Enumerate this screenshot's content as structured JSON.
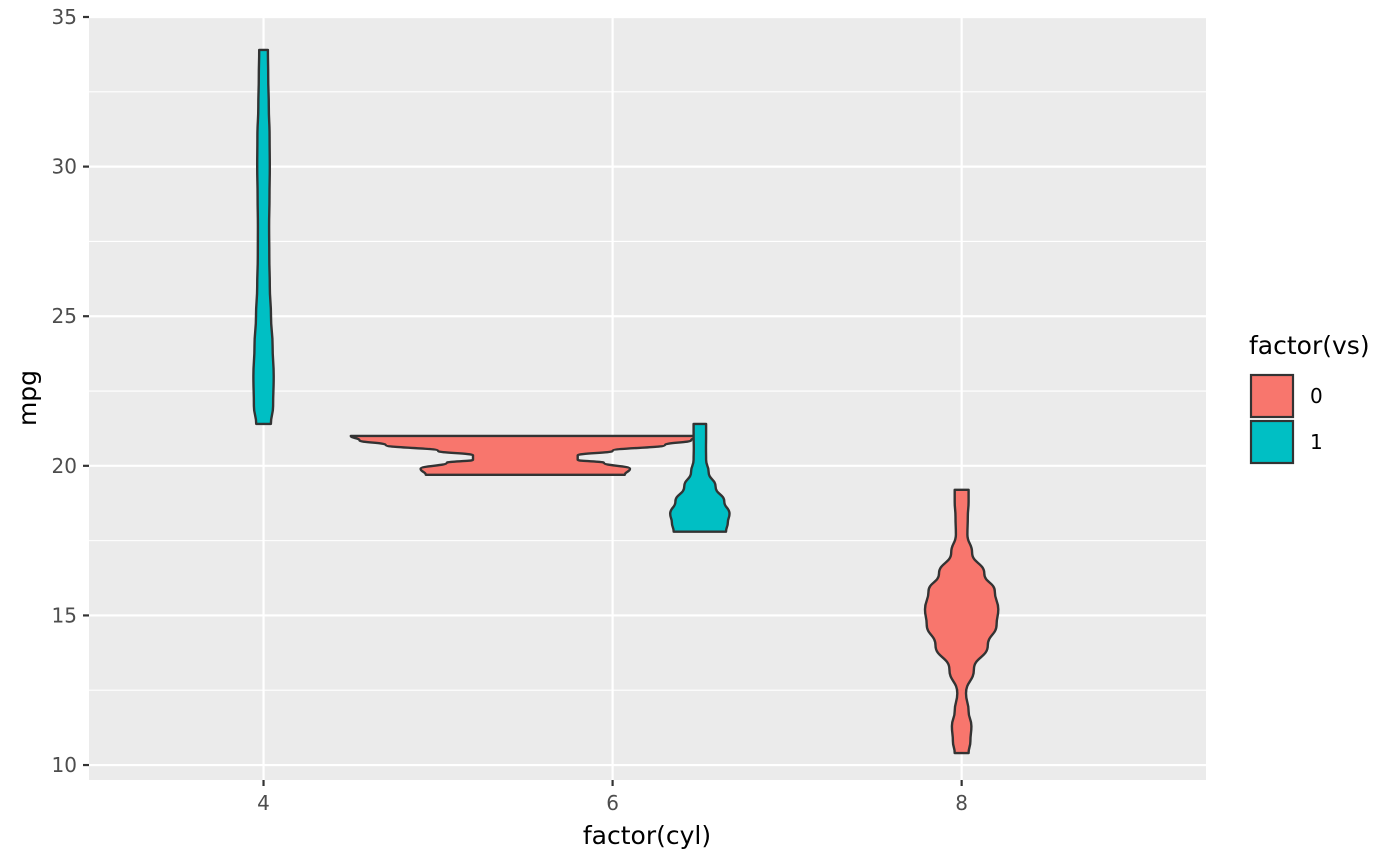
{
  "chart_data": {
    "type": "violin",
    "xlabel": "factor(cyl)",
    "ylabel": "mpg",
    "x_categories": [
      "4",
      "6",
      "8"
    ],
    "x_range": [
      3,
      9.4
    ],
    "ylim": [
      9.5,
      35
    ],
    "y_ticks": [
      10,
      15,
      20,
      25,
      30,
      35
    ],
    "grid": true,
    "legend": {
      "title": "factor(vs)",
      "position": "right",
      "entries": [
        {
          "label": "0",
          "color": "#F8766D"
        },
        {
          "label": "1",
          "color": "#00BFC4"
        }
      ]
    },
    "violins": [
      {
        "cyl": "4",
        "vs": "1",
        "x_center": 4,
        "ymin": 21.4,
        "ymax": 33.9,
        "profile": [
          [
            21.4,
            0.042
          ],
          [
            22,
            0.055
          ],
          [
            23,
            0.058
          ],
          [
            24,
            0.052
          ],
          [
            25,
            0.043
          ],
          [
            26,
            0.036
          ],
          [
            27,
            0.033
          ],
          [
            28,
            0.032
          ],
          [
            29,
            0.034
          ],
          [
            30,
            0.036
          ],
          [
            31,
            0.035
          ],
          [
            32,
            0.03
          ],
          [
            33,
            0.027
          ],
          [
            33.9,
            0.025
          ]
        ]
      },
      {
        "cyl": "6",
        "vs": "0",
        "x_center": 5.5,
        "ymin": 19.7,
        "ymax": 21.0,
        "profile": [
          [
            19.7,
            0.57
          ],
          [
            19.9,
            0.6
          ],
          [
            20.1,
            0.45
          ],
          [
            20.2,
            0.3
          ],
          [
            20.35,
            0.3
          ],
          [
            20.5,
            0.5
          ],
          [
            20.7,
            0.8
          ],
          [
            20.85,
            0.95
          ],
          [
            21.0,
            1.0
          ]
        ]
      },
      {
        "cyl": "6",
        "vs": "1",
        "x_center": 6.5,
        "ymin": 17.8,
        "ymax": 21.4,
        "profile": [
          [
            17.8,
            0.15
          ],
          [
            18.1,
            0.16
          ],
          [
            18.4,
            0.17
          ],
          [
            18.8,
            0.14
          ],
          [
            19.3,
            0.09
          ],
          [
            19.8,
            0.05
          ],
          [
            20.2,
            0.036
          ],
          [
            20.6,
            0.035
          ],
          [
            21.0,
            0.036
          ],
          [
            21.4,
            0.036
          ]
        ]
      },
      {
        "cyl": "8",
        "vs": "0",
        "x_center": 8,
        "ymin": 10.4,
        "ymax": 19.2,
        "profile": [
          [
            10.4,
            0.04
          ],
          [
            10.8,
            0.05
          ],
          [
            11.3,
            0.056
          ],
          [
            11.8,
            0.04
          ],
          [
            12.4,
            0.025
          ],
          [
            13.2,
            0.07
          ],
          [
            14.0,
            0.15
          ],
          [
            14.7,
            0.2
          ],
          [
            15.2,
            0.21
          ],
          [
            15.8,
            0.19
          ],
          [
            16.4,
            0.13
          ],
          [
            17.1,
            0.06
          ],
          [
            17.7,
            0.033
          ],
          [
            18.3,
            0.035
          ],
          [
            18.8,
            0.04
          ],
          [
            19.2,
            0.04
          ]
        ]
      }
    ]
  }
}
